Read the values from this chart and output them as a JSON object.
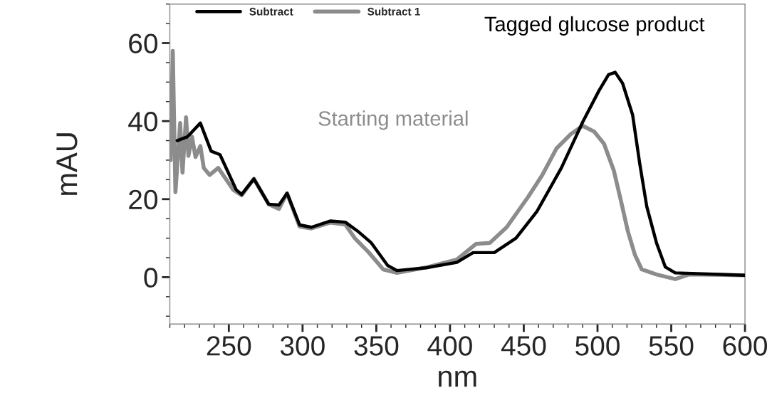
{
  "chart_data": {
    "type": "line",
    "xlabel": "nm",
    "ylabel": "mAU",
    "xlim": [
      210,
      600
    ],
    "ylim": [
      -12,
      70
    ],
    "xticks": [
      250,
      300,
      350,
      400,
      450,
      500,
      550,
      600
    ],
    "yticks": [
      0,
      20,
      40,
      60
    ],
    "grid": false,
    "legend": "top left",
    "line_style": "solid",
    "marker": "none",
    "annotations": [
      "Tagged glucose product",
      "Starting material"
    ],
    "series": [
      {
        "name": "Subtract",
        "color": "#000000",
        "x": [
          215,
          222,
          230.7,
          238,
          244,
          255,
          258.7,
          267,
          277,
          284,
          289.5,
          298,
          306,
          319,
          329,
          338,
          346.6,
          357.7,
          364,
          383.7,
          404.6,
          415.7,
          430,
          444.7,
          459,
          475.5,
          490,
          501,
          507.5,
          512,
          517,
          523.8,
          528.6,
          533.4,
          540,
          546,
          552.7,
          600
        ],
        "values": [
          35,
          36,
          39.5,
          32.3,
          31.4,
          22.4,
          21.2,
          25.2,
          18.7,
          18.5,
          21.5,
          13.4,
          12.8,
          14.4,
          14.1,
          11.6,
          8.8,
          3,
          1.7,
          2.4,
          3.8,
          6.3,
          6.3,
          10,
          16.9,
          28,
          39.8,
          47.8,
          51.9,
          52.5,
          49.7,
          41.6,
          29.2,
          18.1,
          8.8,
          2.6,
          1.1,
          0.5
        ]
      },
      {
        "name": "Subtract 1",
        "color": "#8c8c8c",
        "x": [
          210.5,
          212,
          213.8,
          217,
          218.6,
          221,
          222.6,
          225,
          227.4,
          230.7,
          233,
          237,
          242.8,
          253,
          258.7,
          267,
          277,
          284,
          289.5,
          298,
          306,
          319,
          329,
          335.4,
          345,
          354.7,
          364,
          385,
          404.6,
          417.5,
          427,
          438.4,
          453,
          462.6,
          472.2,
          482,
          490,
          497.8,
          504.4,
          511,
          515.7,
          520.5,
          525.4,
          530,
          540,
          552.7,
          562,
          600
        ],
        "values": [
          30,
          58,
          21.8,
          39.5,
          26.8,
          41,
          31.1,
          36,
          30.8,
          33.6,
          28,
          26.2,
          28,
          22.4,
          21,
          25.2,
          18.7,
          17.5,
          21.5,
          13,
          12.5,
          14,
          13.5,
          10,
          6.3,
          2,
          1.1,
          2.6,
          4.5,
          8.5,
          8.8,
          12.8,
          20.6,
          26.2,
          33,
          36.7,
          38.8,
          37.3,
          34.2,
          27.4,
          19.9,
          11.9,
          5.7,
          2,
          0.7,
          -0.5,
          0.7,
          0.5
        ]
      }
    ]
  }
}
